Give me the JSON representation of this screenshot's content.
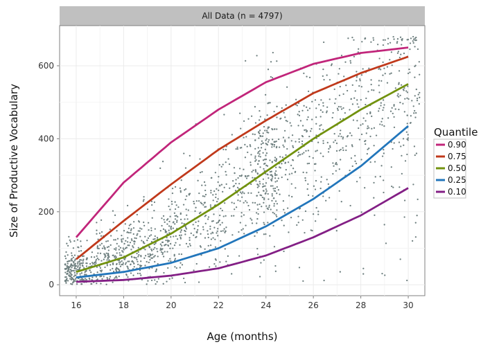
{
  "chart_data": {
    "type": "scatter",
    "facet_label": "All Data (n = 4797)",
    "xlabel": "Age (months)",
    "ylabel": "Size of Productive Vocabulary",
    "xlim": [
      15.3,
      30.7
    ],
    "ylim": [
      -30,
      710
    ],
    "x_ticks": [
      16,
      18,
      20,
      22,
      24,
      26,
      28,
      30
    ],
    "x_tick_labels": [
      "16",
      "18",
      "20",
      "22",
      "24",
      "26",
      "28",
      "30"
    ],
    "y_ticks": [
      0,
      200,
      400,
      600
    ],
    "y_tick_labels": [
      "0",
      "200",
      "400",
      "600"
    ],
    "grid": true,
    "legend": {
      "title": "Quantile",
      "position": "right"
    },
    "scatter_color": "#6f8080",
    "series": [
      {
        "name": "0.90",
        "color": "#c1257a",
        "x": [
          16,
          18,
          20,
          22,
          24,
          26,
          28,
          30
        ],
        "y": [
          130,
          280,
          390,
          480,
          555,
          605,
          635,
          650
        ]
      },
      {
        "name": "0.75",
        "color": "#c0391b",
        "x": [
          16,
          18,
          20,
          22,
          24,
          26,
          28,
          30
        ],
        "y": [
          70,
          175,
          275,
          370,
          450,
          525,
          580,
          625
        ]
      },
      {
        "name": "0.50",
        "color": "#72920e",
        "x": [
          16,
          18,
          20,
          22,
          24,
          26,
          28,
          30
        ],
        "y": [
          35,
          75,
          140,
          220,
          310,
          400,
          480,
          550
        ]
      },
      {
        "name": "0.25",
        "color": "#2276bb",
        "x": [
          16,
          18,
          20,
          22,
          24,
          26,
          28,
          30
        ],
        "y": [
          20,
          35,
          60,
          100,
          160,
          235,
          325,
          435
        ]
      },
      {
        "name": "0.10",
        "color": "#831f85",
        "x": [
          16,
          18,
          20,
          22,
          24,
          26,
          28,
          30
        ],
        "y": [
          8,
          13,
          25,
          45,
          80,
          130,
          190,
          265
        ]
      }
    ]
  }
}
